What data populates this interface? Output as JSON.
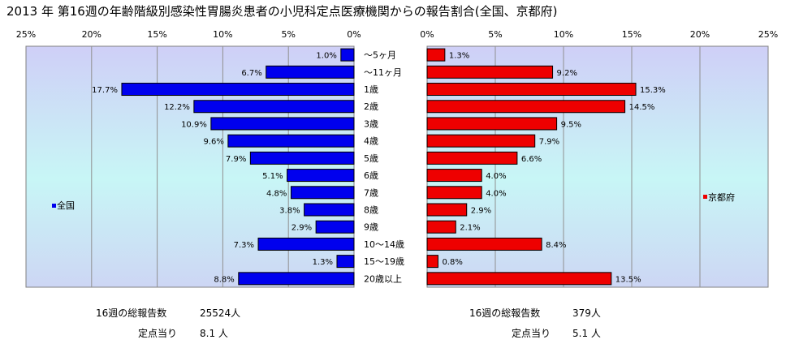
{
  "title": "2013 年 第16週の年齢階級別感染性胃腸炎患者の小児科定点医療機関からの報告割合(全国、京都府)",
  "chart_data": {
    "type": "bar",
    "orientation": "horizontal",
    "x_ticks": [
      "25%",
      "20%",
      "15%",
      "10%",
      "5%",
      "0%"
    ],
    "x_ticks_right": [
      "0%",
      "5%",
      "10%",
      "15%",
      "20%",
      "25%"
    ],
    "xlim": [
      0,
      25
    ],
    "grid": true,
    "categories": [
      "～5ヶ月",
      "～11ヶ月",
      "1歳",
      "2歳",
      "3歳",
      "4歳",
      "5歳",
      "6歳",
      "7歳",
      "8歳",
      "9歳",
      "10～14歳",
      "15～19歳",
      "20歳以上"
    ],
    "series": [
      {
        "name": "全国",
        "color": "#0000ee",
        "values": [
          1.0,
          6.7,
          17.7,
          12.2,
          10.9,
          9.6,
          7.9,
          5.1,
          4.8,
          3.8,
          2.9,
          7.3,
          1.3,
          8.8
        ],
        "labels": [
          "1.0%",
          "6.7%",
          "17.7%",
          "12.2%",
          "10.9%",
          "9.6%",
          "7.9%",
          "5.1%",
          "4.8%",
          "3.8%",
          "2.9%",
          "7.3%",
          "1.3%",
          "8.8%"
        ]
      },
      {
        "name": "京都府",
        "color": "#ee0000",
        "values": [
          1.3,
          9.2,
          15.3,
          14.5,
          9.5,
          7.9,
          6.6,
          4.0,
          4.0,
          2.9,
          2.1,
          8.4,
          0.8,
          13.5
        ],
        "labels": [
          "1.3%",
          "9.2%",
          "15.3%",
          "14.5%",
          "9.5%",
          "7.9%",
          "6.6%",
          "4.0%",
          "4.0%",
          "2.9%",
          "2.1%",
          "8.4%",
          "0.8%",
          "13.5%"
        ]
      }
    ]
  },
  "footer": {
    "left": {
      "total_label": "16週の総報告数",
      "total_value": "25524人",
      "per_label": "定点当り",
      "per_value": "8.1 人"
    },
    "right": {
      "total_label": "16週の総報告数",
      "total_value": "379人",
      "per_label": "定点当り",
      "per_value": "5.1 人"
    }
  }
}
